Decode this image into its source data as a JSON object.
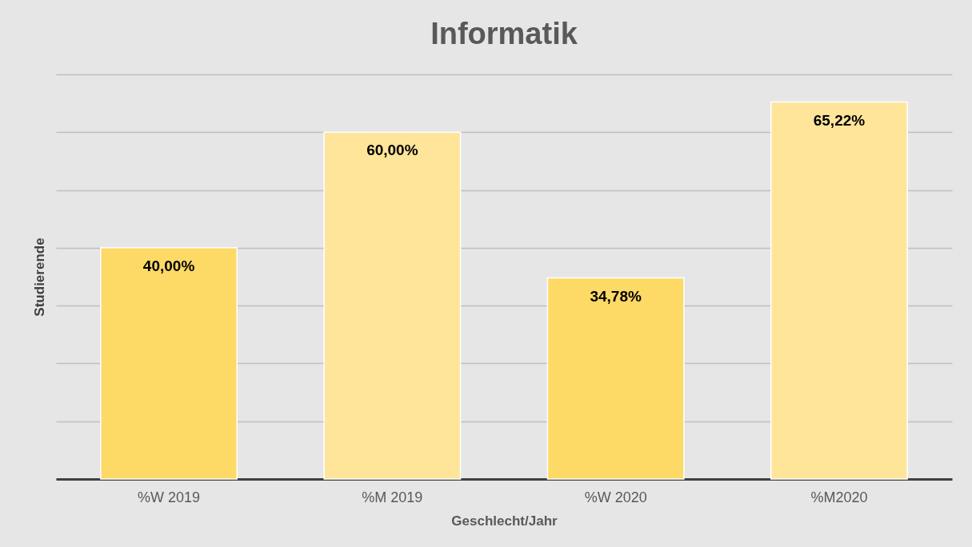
{
  "chart_data": {
    "type": "bar",
    "title": "Informatik",
    "xlabel": "Geschlecht/Jahr",
    "ylabel": "Studierende",
    "categories": [
      "%W 2019",
      "%M 2019",
      "%W 2020",
      "%M2020"
    ],
    "values": [
      40.0,
      60.0,
      34.78,
      65.22
    ],
    "colors": [
      "#fdd966",
      "#fee599",
      "#fdd966",
      "#fee599"
    ],
    "value_labels": [
      "40,00%",
      "60,00%",
      "34,78%",
      "65,22%"
    ],
    "ylim": [
      0,
      70
    ],
    "yticks": [
      {
        "value": 0,
        "label": null
      },
      {
        "value": 10,
        "label": null
      },
      {
        "value": 20,
        "label": null
      },
      {
        "value": 30,
        "label": null
      },
      {
        "value": 40,
        "label": null
      },
      {
        "value": 50,
        "label": null
      },
      {
        "value": 60,
        "label": null
      },
      {
        "value": 70,
        "label": null
      }
    ],
    "grid": "y",
    "tick_labels": "x"
  }
}
